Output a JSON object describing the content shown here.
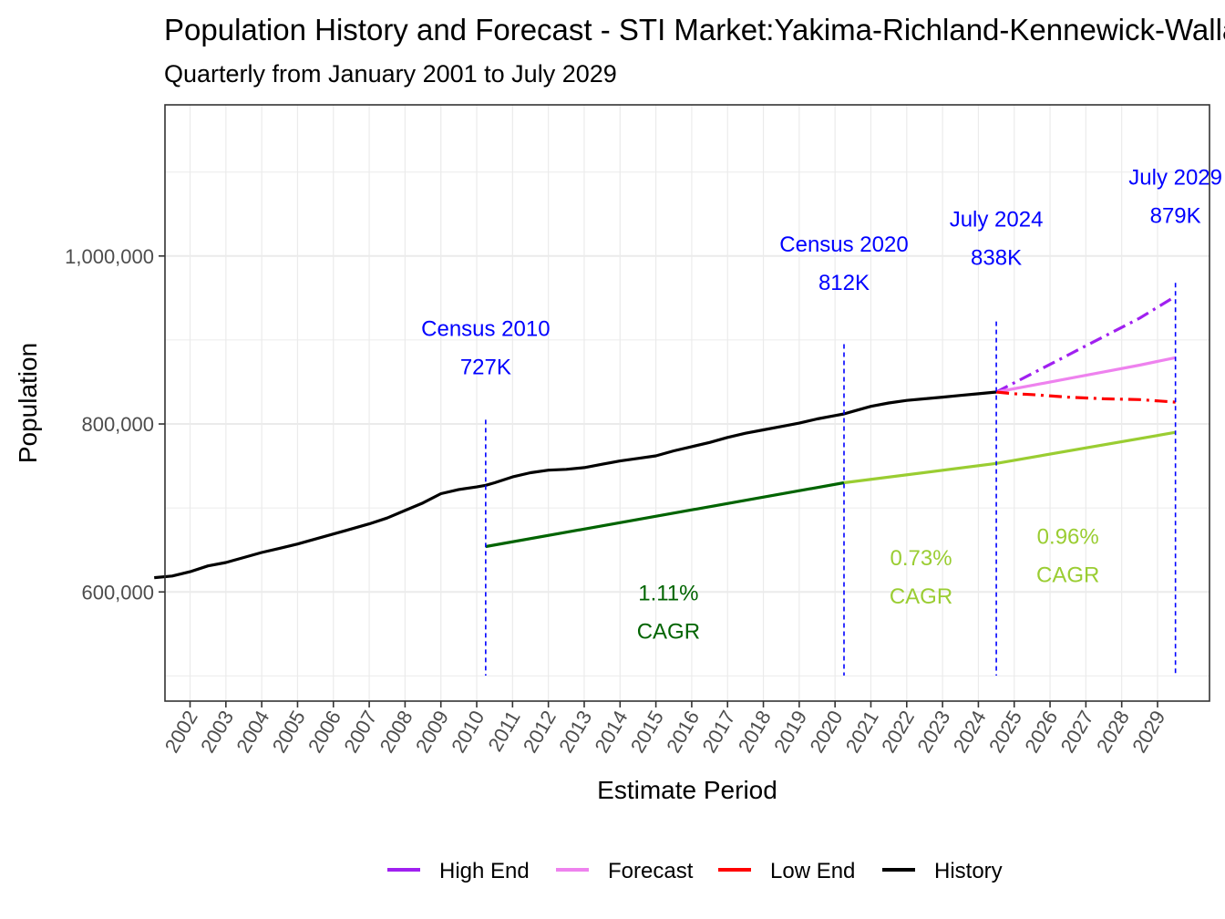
{
  "chart_data": {
    "type": "line",
    "title": "Population History and Forecast - STI Market:Yakima-Richland-Kennewick-Walla Walla, WA",
    "subtitle": "Quarterly from January 2001 to July 2029",
    "xlabel": "Estimate Period",
    "ylabel": "Population",
    "xlim": [
      2001.3,
      2030.45
    ],
    "ylim": [
      470000,
      1180000
    ],
    "y_ticks": [
      {
        "value": 600000,
        "label": "600,000"
      },
      {
        "value": 800000,
        "label": "800,000"
      },
      {
        "value": 1000000,
        "label": "1,000,000"
      }
    ],
    "x_ticks": [
      "2002",
      "2003",
      "2004",
      "2005",
      "2006",
      "2007",
      "2008",
      "2009",
      "2010",
      "2011",
      "2012",
      "2013",
      "2014",
      "2015",
      "2016",
      "2017",
      "2018",
      "2019",
      "2020",
      "2021",
      "2022",
      "2023",
      "2024",
      "2025",
      "2026",
      "2027",
      "2028",
      "2029"
    ],
    "legend": [
      {
        "name": "High End",
        "color": "#a020f0"
      },
      {
        "name": "Forecast",
        "color": "#ee82ee"
      },
      {
        "name": "Low End",
        "color": "#ff0000"
      },
      {
        "name": "History",
        "color": "#000000"
      }
    ],
    "series": [
      {
        "name": "History",
        "color": "#000000",
        "style": "solid",
        "x": [
          2001.0,
          2001.5,
          2002.0,
          2002.5,
          2003.0,
          2003.5,
          2004.0,
          2004.5,
          2005.0,
          2005.5,
          2006.0,
          2006.5,
          2007.0,
          2007.5,
          2008.0,
          2008.5,
          2009.0,
          2009.5,
          2010.0,
          2010.25,
          2010.5,
          2011.0,
          2011.5,
          2012.0,
          2012.5,
          2013.0,
          2013.5,
          2014.0,
          2014.5,
          2015.0,
          2015.5,
          2016.0,
          2016.5,
          2017.0,
          2017.5,
          2018.0,
          2018.5,
          2019.0,
          2019.5,
          2020.0,
          2020.25,
          2020.5,
          2021.0,
          2021.5,
          2022.0,
          2022.5,
          2023.0,
          2023.5,
          2024.0,
          2024.5
        ],
        "y": [
          617000,
          619000,
          624000,
          631000,
          635000,
          641000,
          647000,
          652000,
          657000,
          663000,
          669000,
          675000,
          681000,
          688000,
          697000,
          706000,
          717000,
          722000,
          725000,
          727000,
          730000,
          737000,
          742000,
          745000,
          746000,
          748000,
          752000,
          756000,
          759000,
          762000,
          768000,
          773000,
          778000,
          784000,
          789000,
          793000,
          797000,
          801000,
          806000,
          810000,
          812000,
          815000,
          821000,
          825000,
          828000,
          830000,
          832000,
          834000,
          836000,
          838000
        ]
      },
      {
        "name": "High End",
        "color": "#a020f0",
        "style": "dashdot",
        "x": [
          2024.5,
          2025.5,
          2026.5,
          2027.5,
          2028.5,
          2029.5
        ],
        "y": [
          838000,
          860000,
          882000,
          904000,
          926000,
          952000
        ]
      },
      {
        "name": "Forecast",
        "color": "#ee82ee",
        "style": "solid",
        "x": [
          2024.5,
          2025.5,
          2026.5,
          2027.5,
          2028.5,
          2029.5
        ],
        "y": [
          838000,
          846000,
          854000,
          862000,
          870000,
          879000
        ]
      },
      {
        "name": "Low End",
        "color": "#ff0000",
        "style": "dashdot",
        "x": [
          2024.5,
          2025.0,
          2025.5,
          2026.5,
          2027.5,
          2028.5,
          2029.5
        ],
        "y": [
          838000,
          836000,
          835000,
          832000,
          830000,
          829000,
          826000
        ]
      },
      {
        "name": "CAGR 2010-2020",
        "color": "#006400",
        "style": "solid",
        "x": [
          2010.25,
          2020.25
        ],
        "y": [
          654000,
          730000
        ]
      },
      {
        "name": "CAGR 2020-2024",
        "color": "#9acd32",
        "style": "solid",
        "x": [
          2020.25,
          2024.5
        ],
        "y": [
          730000,
          753000
        ]
      },
      {
        "name": "CAGR 2024-2029",
        "color": "#9acd32",
        "style": "solid",
        "x": [
          2024.5,
          2029.5
        ],
        "y": [
          753000,
          790000
        ]
      }
    ],
    "vlines": [
      {
        "x": 2010.25,
        "y_top": 805000,
        "color": "#0000ff"
      },
      {
        "x": 2020.25,
        "y_top": 895000,
        "color": "#0000ff"
      },
      {
        "x": 2024.5,
        "y_top": 922000,
        "color": "#0000ff"
      },
      {
        "x": 2029.5,
        "y_top": 968000,
        "color": "#0000ff"
      }
    ],
    "annotations": [
      {
        "x": 2010.25,
        "y": 905000,
        "lines": [
          "Census 2010",
          "727K"
        ],
        "color": "#0000ff"
      },
      {
        "x": 2020.25,
        "y": 1005000,
        "lines": [
          "Census 2020",
          "812K"
        ],
        "color": "#0000ff"
      },
      {
        "x": 2024.5,
        "y": 1035000,
        "lines": [
          "July 2024",
          "838K"
        ],
        "color": "#0000ff"
      },
      {
        "x": 2029.5,
        "y": 1085000,
        "lines": [
          "July 2029",
          "879K"
        ],
        "color": "#0000ff"
      },
      {
        "x": 2015.35,
        "y": 590000,
        "lines": [
          "1.11%",
          "CAGR"
        ],
        "color": "#006400"
      },
      {
        "x": 2022.4,
        "y": 632000,
        "lines": [
          "0.73%",
          "CAGR"
        ],
        "color": "#9acd32"
      },
      {
        "x": 2026.5,
        "y": 657000,
        "lines": [
          "0.96%",
          "CAGR"
        ],
        "color": "#9acd32"
      }
    ]
  }
}
